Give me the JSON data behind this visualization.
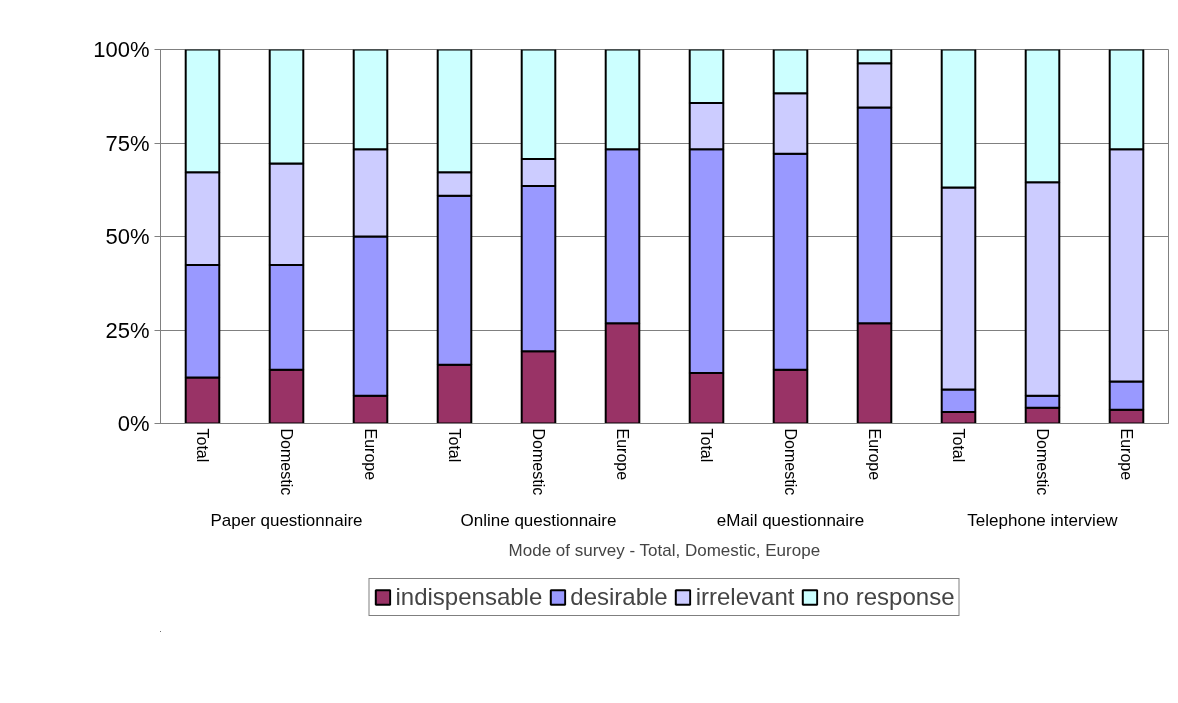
{
  "chart_data": {
    "type": "bar",
    "stacked": true,
    "categories": [
      "Total",
      "Domestic",
      "Europe",
      "Total",
      "Domestic",
      "Europe",
      "Total",
      "Domestic",
      "Europe",
      "Total",
      "Domestic",
      "Europe"
    ],
    "xlabel": "Mode of survey - Total, Domestic, Europe",
    "annotations": [
      "Paper questionnaire",
      "Online questionnaire",
      "eMail questionnaire",
      "Telephone interview"
    ],
    "series": [
      {
        "name": "indispensable",
        "color": "#993366",
        "values": [
          12.3,
          14.4,
          7.4,
          15.7,
          19.3,
          26.8,
          13.5,
          14.4,
          26.8,
          3.1,
          4.2,
          3.7
        ]
      },
      {
        "name": "desirable",
        "color": "#9999ff",
        "values": [
          30.1,
          28.0,
          42.6,
          45.2,
          44.2,
          46.5,
          59.8,
          57.7,
          57.7,
          6.0,
          3.2,
          7.5
        ]
      },
      {
        "name": "irrelevant",
        "color": "#ccccff",
        "values": [
          24.8,
          27.1,
          23.3,
          6.3,
          7.2,
          null,
          12.4,
          16.2,
          11.8,
          54.0,
          57.1,
          62.1
        ]
      },
      {
        "name": "no response",
        "color": "#ccffff",
        "values": [
          32.8,
          30.5,
          26.7,
          32.8,
          29.3,
          26.7,
          14.3,
          11.7,
          3.7,
          36.9,
          35.5,
          26.7
        ]
      }
    ],
    "ylim": [
      0,
      100
    ],
    "yticks": [
      {
        "value": 0,
        "label": "0%"
      },
      {
        "value": 25,
        "label": "25%"
      },
      {
        "value": 50,
        "label": "50%"
      },
      {
        "value": 75,
        "label": "75%"
      },
      {
        "value": 100,
        "label": "100%"
      }
    ],
    "grid": "y",
    "legend": "bottom"
  }
}
